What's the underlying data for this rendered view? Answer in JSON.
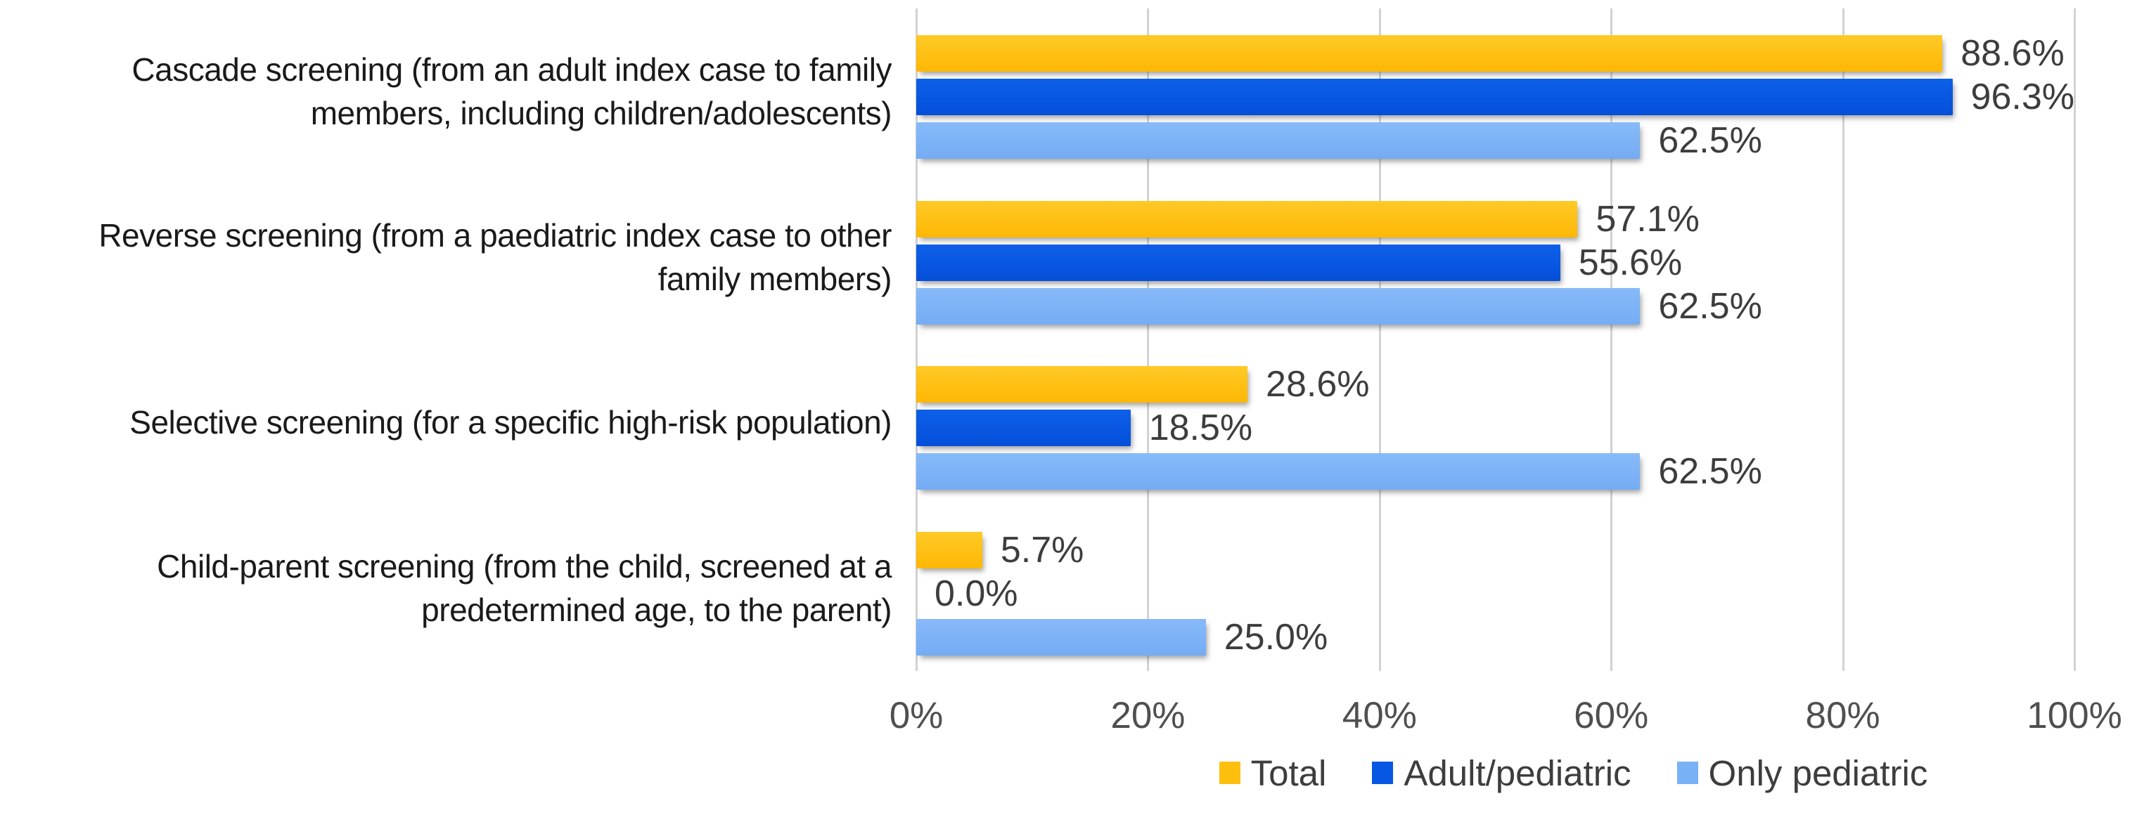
{
  "chart_data": {
    "type": "bar",
    "orientation": "horizontal",
    "title": "",
    "xlabel": "",
    "ylabel": "",
    "grid": true,
    "legend_position": "bottom",
    "categories": [
      {
        "lines": [
          "Cascade screening (from an adult index case to family",
          "members, including children/adolescents)"
        ]
      },
      {
        "lines": [
          "Reverse screening (from a paediatric index case to other",
          "family members)"
        ]
      },
      {
        "lines": [
          "Selective screening (for a specific high-risk population)"
        ]
      },
      {
        "lines": [
          "Child-parent screening (from the child, screened at a",
          "predetermined age, to the parent)"
        ]
      }
    ],
    "series": [
      {
        "name": "Total",
        "color": "#FFBF0F",
        "gradient_top": "#FFCA28",
        "gradient_bottom": "#FFB703",
        "values": [
          88.6,
          57.1,
          28.6,
          5.7
        ],
        "labels": [
          "88.6%",
          "57.1%",
          "28.6%",
          "5.7%"
        ]
      },
      {
        "name": "Adult/pediatric",
        "color": "#0757E4",
        "gradient_top": "#0E60E8",
        "gradient_bottom": "#044FD9",
        "values": [
          96.3,
          55.6,
          18.5,
          0.0
        ],
        "labels": [
          "96.3%",
          "55.6%",
          "18.5%",
          "0.0%"
        ]
      },
      {
        "name": "Only pediatric",
        "color": "#79B1F6",
        "gradient_top": "#87BAF9",
        "gradient_bottom": "#74ACF4",
        "values": [
          62.5,
          62.5,
          62.5,
          25.0
        ],
        "labels": [
          "62.5%",
          "62.5%",
          "62.5%",
          "25.0%"
        ]
      }
    ],
    "x_axis": {
      "min": 0,
      "max": 100,
      "ticks": [
        {
          "label": "0%",
          "value": 0
        },
        {
          "label": "20%",
          "value": 20
        },
        {
          "label": "40%",
          "value": 40
        },
        {
          "label": "60%",
          "value": 60
        },
        {
          "label": "80%",
          "value": 80
        },
        {
          "label": "100%",
          "value": 100
        }
      ]
    },
    "legend": [
      "Total",
      "Adult/pediatric",
      "Only pediatric"
    ]
  },
  "colors": {
    "background": "#ffffff",
    "gridline": "#d2d2d2",
    "category_text": "#1a1a1a",
    "value_text": "#3d3d3d",
    "tick_text": "#4f4f4f",
    "legend_text": "#3d3d3d"
  }
}
